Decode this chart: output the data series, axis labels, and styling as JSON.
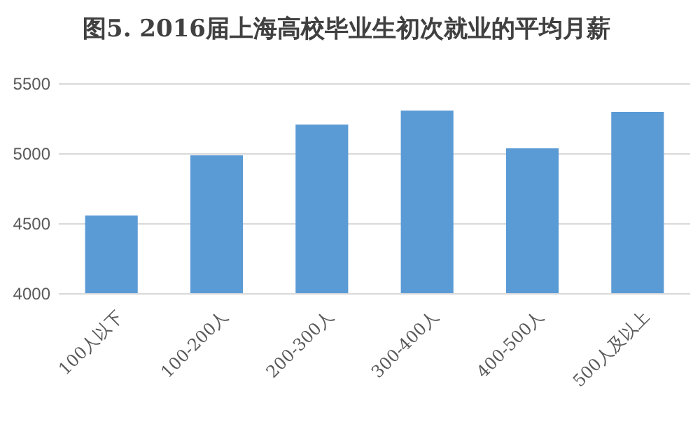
{
  "chart_data": {
    "type": "bar",
    "title": "图5. 2016届上海高校毕业生初次就业的平均月薪",
    "categories": [
      "100人以下",
      "100-200人",
      "200-300人",
      "300-400人",
      "400-500人",
      "500人及以上"
    ],
    "values": [
      4560,
      4990,
      5210,
      5310,
      5040,
      5300
    ],
    "color": "#5b9bd5",
    "ylim": [
      4000,
      5500
    ],
    "yticks": [
      4000,
      4500,
      5000,
      5500
    ],
    "grid": "y"
  }
}
